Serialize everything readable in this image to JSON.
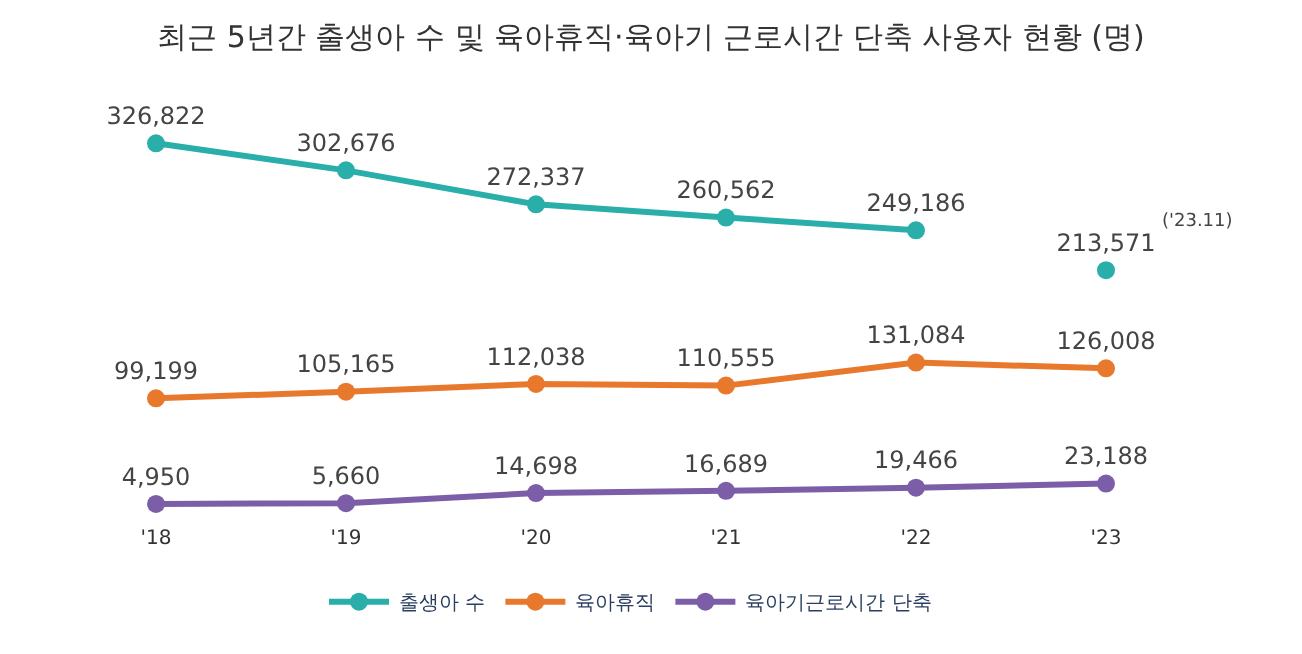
{
  "chart_data": {
    "type": "line",
    "title": "최근 5년간 출생아 수 및 육아휴직·육아기 근로시간 단축 사용자 현황 (명)",
    "categories": [
      "'18",
      "'19",
      "'20",
      "'21",
      "'22",
      "'23"
    ],
    "series": [
      {
        "name": "출생아 수",
        "color": "#2aaeaa",
        "values": [
          326822,
          302676,
          272337,
          260562,
          249186,
          null
        ],
        "value_labels": [
          "326,822",
          "302,676",
          "272,337",
          "260,562",
          "249,186",
          null
        ]
      },
      {
        "type": "scatter",
        "color": "#2aaeaa",
        "values": [
          null,
          null,
          null,
          null,
          null,
          213571
        ],
        "value_labels": [
          null,
          null,
          null,
          null,
          null,
          "213,571"
        ]
      },
      {
        "name": "육아휴직",
        "color": "#e8782c",
        "values": [
          99199,
          105165,
          112038,
          110555,
          131084,
          126008
        ],
        "value_labels": [
          "99,199",
          "105,165",
          "112,038",
          "110,555",
          "131,084",
          "126,008"
        ]
      },
      {
        "name": "육아기근로시간 단축",
        "color": "#7c5ea8",
        "values": [
          4950,
          5660,
          14698,
          16689,
          19466,
          23188
        ],
        "value_labels": [
          "4,950",
          "5,660",
          "14,698",
          "16,689",
          "19,466",
          "23,188"
        ]
      }
    ],
    "annotations": [
      "('23.11)"
    ],
    "marker": "circle",
    "line_style": "solid",
    "legend": "bottom"
  }
}
